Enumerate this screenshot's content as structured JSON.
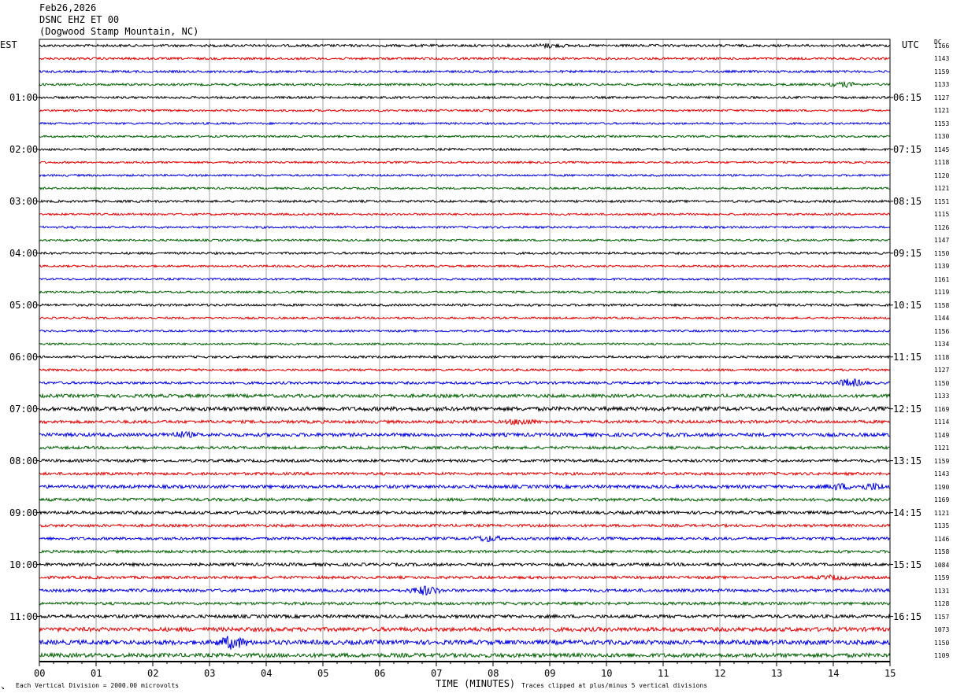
{
  "header": {
    "date": "Feb26,2026",
    "station": "DSNC EHZ ET 00",
    "location": "(Dogwood Stamp Mountain, NC)"
  },
  "axes": {
    "left_timezone": "EST",
    "right_timezone": "UTC",
    "dc_label": "DC",
    "xlabel": "TIME (MINUTES)",
    "x_ticks": [
      "00",
      "01",
      "02",
      "03",
      "04",
      "05",
      "06",
      "07",
      "08",
      "09",
      "10",
      "11",
      "12",
      "13",
      "14",
      "15"
    ],
    "left_hours": [
      "01:00",
      "02:00",
      "03:00",
      "04:00",
      "05:00",
      "06:00",
      "07:00",
      "08:00",
      "09:00",
      "10:00",
      "11:00"
    ],
    "right_hours": [
      "06:15",
      "07:15",
      "08:15",
      "09:15",
      "10:15",
      "11:15",
      "12:15",
      "13:15",
      "14:15",
      "15:15",
      "16:15"
    ]
  },
  "footer": {
    "scale_note": "Each Vertical Division = 2000.00 microvolts",
    "clip_note": "Traces clipped at plus/minus 5 vertical divisions",
    "corner_mark": "↘"
  },
  "colors": {
    "trace_cycle": [
      "#000000",
      "#e00000",
      "#0000e0",
      "#006000"
    ],
    "grid": "#a0a0a0",
    "frame": "#000000"
  },
  "chart_data": {
    "type": "line",
    "title": "",
    "xlim": [
      0,
      15
    ],
    "trace_count": 48,
    "dc_offsets": [
      1166,
      1143,
      1159,
      1133,
      1127,
      1121,
      1153,
      1130,
      1145,
      1118,
      1120,
      1121,
      1151,
      1115,
      1126,
      1147,
      1150,
      1139,
      1161,
      1119,
      1158,
      1144,
      1156,
      1134,
      1118,
      1127,
      1150,
      1133,
      1169,
      1114,
      1149,
      1121,
      1159,
      1143,
      1190,
      1169,
      1121,
      1135,
      1146,
      1158,
      1084,
      1159,
      1131,
      1128,
      1157,
      1073,
      1150,
      1109
    ],
    "noise_level": [
      1.0,
      0.9,
      0.9,
      0.9,
      0.9,
      0.8,
      0.8,
      0.8,
      0.9,
      0.8,
      0.8,
      0.8,
      0.9,
      0.8,
      0.8,
      0.8,
      0.9,
      0.8,
      0.8,
      0.8,
      0.9,
      0.8,
      0.8,
      0.8,
      0.9,
      0.9,
      1.0,
      1.3,
      1.6,
      1.2,
      1.4,
      1.1,
      1.1,
      1.1,
      1.3,
      1.2,
      1.2,
      1.1,
      1.1,
      1.1,
      1.2,
      1.1,
      1.2,
      1.1,
      1.3,
      1.6,
      1.8,
      1.6
    ],
    "events": [
      {
        "trace": 0,
        "minute": 9.0,
        "amplitude": 2.0
      },
      {
        "trace": 3,
        "minute": 14.2,
        "amplitude": 2.5
      },
      {
        "trace": 26,
        "minute": 14.3,
        "amplitude": 4.5
      },
      {
        "trace": 29,
        "minute": 8.5,
        "amplitude": 3.0
      },
      {
        "trace": 30,
        "minute": 2.5,
        "amplitude": 2.5
      },
      {
        "trace": 34,
        "minute": 14.1,
        "amplitude": 3.0
      },
      {
        "trace": 34,
        "minute": 14.7,
        "amplitude": 3.5
      },
      {
        "trace": 38,
        "minute": 7.9,
        "amplitude": 3.0
      },
      {
        "trace": 41,
        "minute": 14.0,
        "amplitude": 2.0
      },
      {
        "trace": 42,
        "minute": 6.8,
        "amplitude": 5.0
      },
      {
        "trace": 46,
        "minute": 3.4,
        "amplitude": 7.0
      }
    ]
  }
}
